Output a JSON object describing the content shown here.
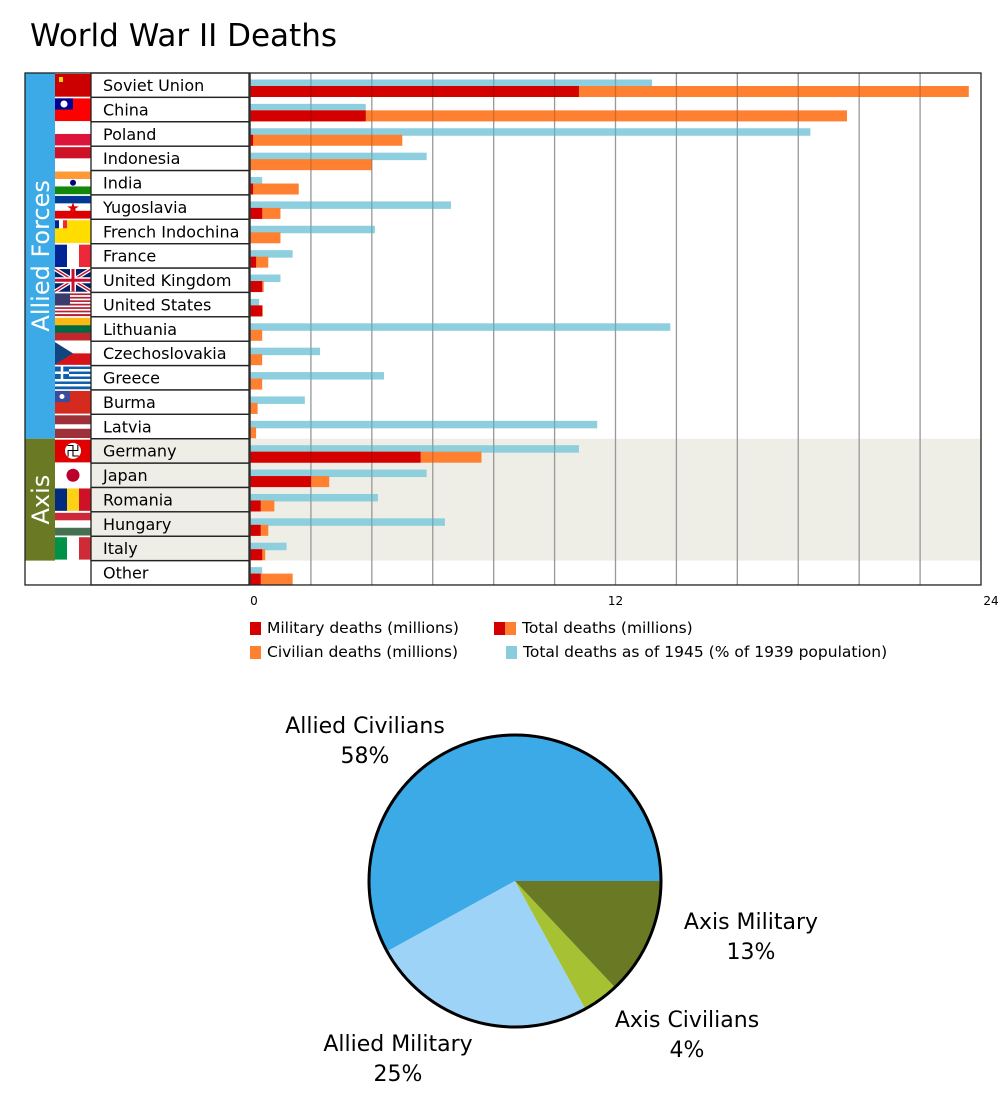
{
  "title": "World War II Deaths",
  "chart_data": [
    {
      "type": "bar",
      "orientation": "horizontal",
      "title": "World War II Deaths",
      "xlim": [
        0,
        24
      ],
      "x_ticks": [
        "0",
        "12",
        "24"
      ],
      "grid": true,
      "groups": [
        {
          "name": "Allied Forces",
          "color": "#3BAAE6",
          "rows": [
            0,
            14
          ]
        },
        {
          "name": "Axis",
          "color": "#6A7A24",
          "rows": [
            15,
            19
          ]
        }
      ],
      "categories": [
        "Soviet Union",
        "China",
        "Poland",
        "Indonesia",
        "India",
        "Yugoslavia",
        "French Indochina",
        "France",
        "United Kingdom",
        "United States",
        "Lithuania",
        "Czechoslovakia",
        "Greece",
        "Burma",
        "Latvia",
        "Germany",
        "Japan",
        "Romania",
        "Hungary",
        "Italy",
        "Other"
      ],
      "flags": [
        "soviet-flag-icon",
        "china-flag-icon",
        "poland-flag-icon",
        "indonesia-flag-icon",
        "india-flag-icon",
        "yugoslavia-flag-icon",
        "french-indochina-flag-icon",
        "france-flag-icon",
        "uk-flag-icon",
        "us-flag-icon",
        "lithuania-flag-icon",
        "czechoslovakia-flag-icon",
        "greece-flag-icon",
        "burma-flag-icon",
        "latvia-flag-icon",
        "germany-flag-icon",
        "japan-flag-icon",
        "romania-flag-icon",
        "hungary-flag-icon",
        "italy-flag-icon",
        ""
      ],
      "series": [
        {
          "name": "Military deaths (millions)",
          "color": "#D40000",
          "values": [
            10.8,
            3.8,
            0.1,
            0,
            0.1,
            0.4,
            0,
            0.2,
            0.4,
            0.4,
            0,
            0,
            0,
            0,
            0,
            5.6,
            2.0,
            0.35,
            0.35,
            0.4,
            0.35
          ]
        },
        {
          "name": "Total deaths (millions)",
          "color": "#FF8030",
          "values": [
            23.6,
            19.6,
            5.0,
            4.0,
            1.6,
            1.0,
            1.0,
            0.6,
            0.45,
            0.42,
            0.4,
            0.4,
            0.4,
            0.25,
            0.2,
            7.6,
            2.6,
            0.8,
            0.6,
            0.5,
            1.4
          ]
        },
        {
          "name": "Total deaths as of 1945 (% of 1939 population)",
          "color": "#88CCDD",
          "values": [
            13.2,
            3.8,
            18.4,
            5.8,
            0.4,
            6.6,
            4.1,
            1.4,
            1.0,
            0.3,
            13.8,
            2.3,
            4.4,
            1.8,
            11.4,
            10.8,
            5.8,
            4.2,
            6.4,
            1.2,
            0.4
          ]
        }
      ],
      "legend": {
        "military": "Military deaths (millions)",
        "total": "Total deaths (millions)",
        "civilian": "Civilian deaths (millions)",
        "percent": "Total deaths as of 1945 (% of 1939 population)",
        "placement": "bottom"
      }
    },
    {
      "type": "pie",
      "slices": [
        {
          "label": "Allied Civilians",
          "value": 58,
          "text": "58%",
          "color": "#3BAAE6"
        },
        {
          "label": "Allied Military",
          "value": 25,
          "text": "25%",
          "color": "#9CD3F7"
        },
        {
          "label": "Axis Civilians",
          "value": 4,
          "text": "4%",
          "color": "#A6C232"
        },
        {
          "label": "Axis Military",
          "value": 13,
          "text": "13%",
          "color": "#6A7A24"
        }
      ]
    }
  ]
}
